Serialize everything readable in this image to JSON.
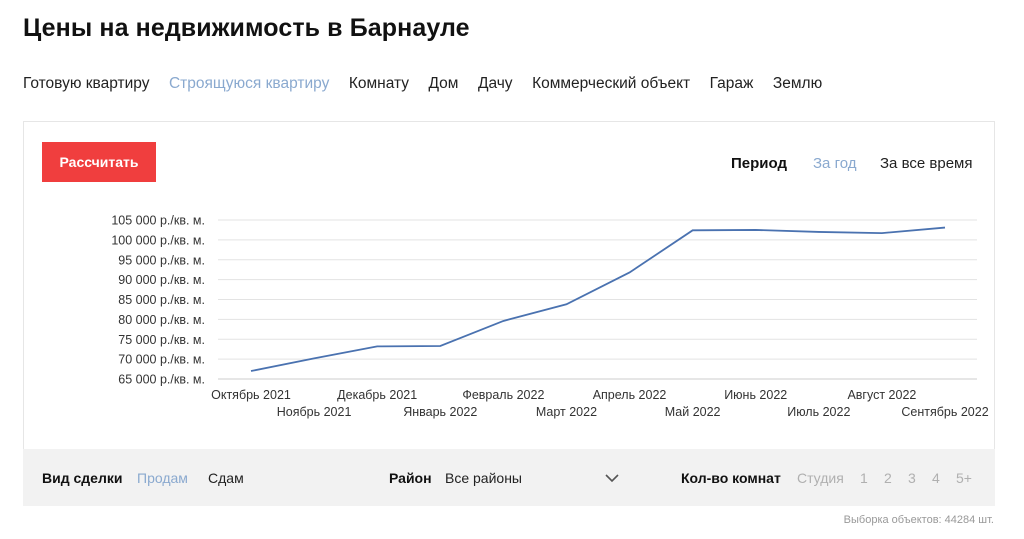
{
  "page": {
    "title": "Цены на недвижимость в Барнауле"
  },
  "tabs": [
    {
      "label": "Готовую квартиру",
      "active": false
    },
    {
      "label": "Строящуюся квартиру",
      "active": true
    },
    {
      "label": "Комнату",
      "active": false
    },
    {
      "label": "Дом",
      "active": false
    },
    {
      "label": "Дачу",
      "active": false
    },
    {
      "label": "Коммерческий объект",
      "active": false
    },
    {
      "label": "Гараж",
      "active": false
    },
    {
      "label": "Землю",
      "active": false
    }
  ],
  "controls": {
    "calc_button": "Рассчитать",
    "period_label": "Период",
    "period_options": [
      {
        "label": "За год",
        "active": true
      },
      {
        "label": "За все время",
        "active": false
      }
    ]
  },
  "chart_data": {
    "type": "line",
    "ylabel_unit": "р./кв. м.",
    "ylim": [
      65000,
      105000
    ],
    "y_ticks": [
      "105 000 р./кв. м.",
      "100 000 р./кв. м.",
      "95 000 р./кв. м.",
      "90 000 р./кв. м.",
      "85 000 р./кв. м.",
      "80 000 р./кв. м.",
      "75 000 р./кв. м.",
      "70 000 р./кв. м.",
      "65 000 р./кв. м."
    ],
    "y_tick_values": [
      105000,
      100000,
      95000,
      90000,
      85000,
      80000,
      75000,
      70000,
      65000
    ],
    "categories": [
      "Октябрь 2021",
      "Ноябрь 2021",
      "Декабрь 2021",
      "Январь 2022",
      "Февраль 2022",
      "Март 2022",
      "Апрель 2022",
      "Май 2022",
      "Июнь 2022",
      "Июль 2022",
      "Август 2022",
      "Сентябрь 2022"
    ],
    "series": [
      {
        "values": [
          67000,
          70200,
          73200,
          73300,
          79600,
          83800,
          91800,
          102400,
          102500,
          102000,
          101700,
          103100
        ],
        "color": "#4a72b0"
      }
    ],
    "grid": true
  },
  "filters": {
    "deal_label": "Вид сделки",
    "deal_options": [
      {
        "label": "Продам",
        "active": true
      },
      {
        "label": "Сдам",
        "active": false
      }
    ],
    "district_label": "Район",
    "district_value": "Все районы",
    "rooms_label": "Кол-во комнат",
    "rooms_options": [
      "Студия",
      "1",
      "2",
      "3",
      "4",
      "5+"
    ]
  },
  "footer": {
    "sample_text": "Выборка объектов: 44284 шт."
  },
  "colors": {
    "accent": "#f03e3e",
    "active_link": "#8aa9cf",
    "line": "#4a72b0"
  }
}
